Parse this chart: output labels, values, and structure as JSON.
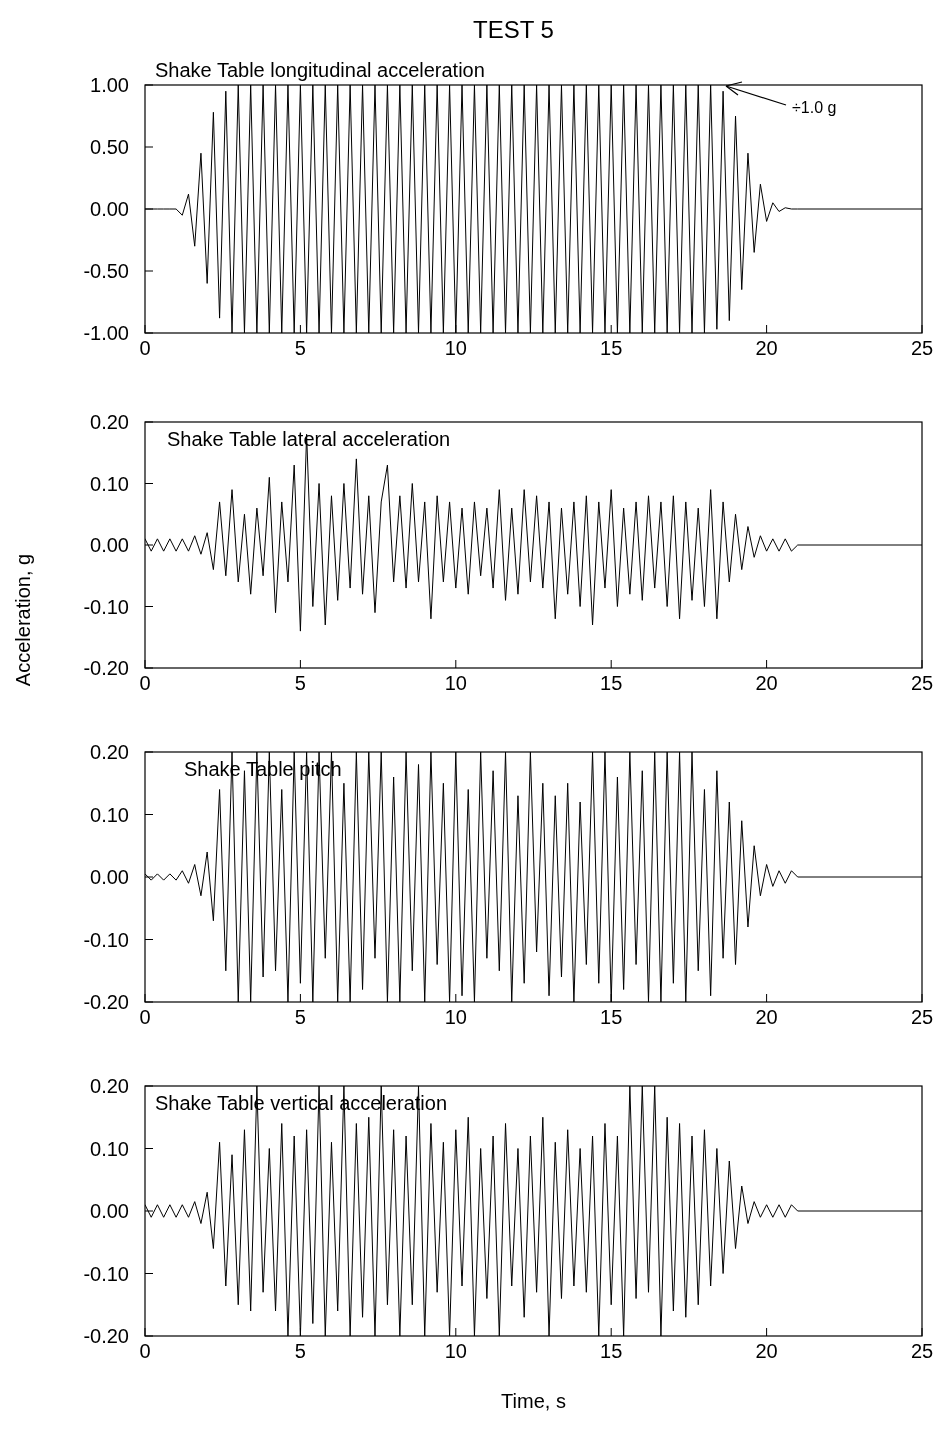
{
  "chart_data": [
    {
      "type": "line",
      "title": "TEST 5",
      "subtitle": "Shake Table longitudinal acceleration",
      "annotations": [
        "÷1.0 g"
      ],
      "xlim": [
        0,
        25
      ],
      "xticks": [
        0,
        5,
        10,
        15,
        20,
        25
      ],
      "ylim": [
        -1,
        1
      ],
      "yticks": [
        {
          "value": -1,
          "label": "-1.00"
        },
        {
          "value": -0.5,
          "label": "-0.50"
        },
        {
          "value": 0,
          "label": "0.00"
        },
        {
          "value": 0.5,
          "label": "0.50"
        },
        {
          "value": 1,
          "label": "1.00"
        }
      ],
      "grid": false,
      "x": [
        0,
        0.2,
        0.4,
        0.6,
        0.8,
        1,
        1.2,
        1.4,
        1.6,
        1.8,
        2,
        2.2,
        2.4,
        2.6,
        2.8,
        3,
        3.2,
        3.4,
        3.6,
        3.8,
        4,
        4.2,
        4.4,
        4.6,
        4.8,
        5,
        5.2,
        5.4,
        5.6,
        5.8,
        6,
        6.2,
        6.4,
        6.6,
        6.8,
        7,
        7.2,
        7.4,
        7.6,
        7.8,
        8,
        8.2,
        8.4,
        8.6,
        8.8,
        9,
        9.2,
        9.4,
        9.6,
        9.8,
        10,
        10.2,
        10.4,
        10.6,
        10.8,
        11,
        11.2,
        11.4,
        11.6,
        11.8,
        12,
        12.2,
        12.4,
        12.6,
        12.8,
        13,
        13.2,
        13.4,
        13.6,
        13.8,
        14,
        14.2,
        14.4,
        14.6,
        14.8,
        15,
        15.2,
        15.4,
        15.6,
        15.8,
        16,
        16.2,
        16.4,
        16.6,
        16.8,
        17,
        17.2,
        17.4,
        17.6,
        17.8,
        18,
        18.2,
        18.4,
        18.6,
        18.8,
        19,
        19.2,
        19.4,
        19.6,
        19.8,
        20,
        20.2,
        20.4,
        20.6,
        20.8,
        21,
        25
      ],
      "series": [
        {
          "color": "#000000",
          "values": [
            0,
            0,
            0,
            0,
            0,
            0,
            -0.05,
            0.12,
            -0.3,
            0.45,
            -0.6,
            0.78,
            -0.88,
            0.95,
            -1,
            1,
            -1,
            1,
            -1,
            1,
            -1,
            1,
            -1,
            1,
            -1,
            1,
            -1,
            1,
            -1,
            1,
            -1,
            1,
            -1,
            1,
            -1,
            1,
            -1,
            1,
            -1,
            1,
            -1,
            1,
            -1,
            1,
            -1,
            1,
            -1,
            1,
            -1,
            1,
            -1,
            1,
            -1,
            1,
            -1,
            1,
            -1,
            1,
            -1,
            1,
            -1,
            1,
            -1,
            1,
            -1,
            1,
            -1,
            1,
            -1,
            1,
            -1,
            1,
            -1,
            1,
            -1,
            1,
            -1,
            1,
            -1,
            1,
            -1,
            1,
            -1,
            1,
            -1,
            1,
            -1,
            1,
            -1,
            1,
            -1,
            1,
            -0.97,
            0.95,
            -0.9,
            0.75,
            -0.65,
            0.45,
            -0.35,
            0.2,
            -0.1,
            0.05,
            -0.02,
            0.01,
            0,
            0,
            0
          ]
        }
      ]
    },
    {
      "type": "line",
      "subtitle": "Shake Table lateral acceleration",
      "ylabel": "Acceleration, g",
      "xlim": [
        0,
        25
      ],
      "xticks": [
        0,
        5,
        10,
        15,
        20,
        25
      ],
      "ylim": [
        -0.2,
        0.2
      ],
      "yticks": [
        {
          "value": -0.2,
          "label": "-0.20"
        },
        {
          "value": -0.1,
          "label": "-0.10"
        },
        {
          "value": 0,
          "label": "0.00"
        },
        {
          "value": 0.1,
          "label": "0.10"
        },
        {
          "value": 0.2,
          "label": "0.20"
        }
      ],
      "grid": false,
      "x": [
        0,
        0.2,
        0.4,
        0.6,
        0.8,
        1,
        1.2,
        1.4,
        1.6,
        1.8,
        2,
        2.2,
        2.4,
        2.6,
        2.8,
        3,
        3.2,
        3.4,
        3.6,
        3.8,
        4,
        4.2,
        4.4,
        4.6,
        4.8,
        5,
        5.2,
        5.4,
        5.6,
        5.8,
        6,
        6.2,
        6.4,
        6.6,
        6.8,
        7,
        7.2,
        7.4,
        7.6,
        7.8,
        8,
        8.2,
        8.4,
        8.6,
        8.8,
        9,
        9.2,
        9.4,
        9.6,
        9.8,
        10,
        10.2,
        10.4,
        10.6,
        10.8,
        11,
        11.2,
        11.4,
        11.6,
        11.8,
        12,
        12.2,
        12.4,
        12.6,
        12.8,
        13,
        13.2,
        13.4,
        13.6,
        13.8,
        14,
        14.2,
        14.4,
        14.6,
        14.8,
        15,
        15.2,
        15.4,
        15.6,
        15.8,
        16,
        16.2,
        16.4,
        16.6,
        16.8,
        17,
        17.2,
        17.4,
        17.6,
        17.8,
        18,
        18.2,
        18.4,
        18.6,
        18.8,
        19,
        19.2,
        19.4,
        19.6,
        19.8,
        20,
        20.2,
        20.4,
        20.6,
        20.8,
        21,
        25
      ],
      "series": [
        {
          "color": "#000000",
          "values": [
            0.01,
            -0.01,
            0.01,
            -0.01,
            0.01,
            -0.01,
            0.01,
            -0.01,
            0.015,
            -0.015,
            0.02,
            -0.04,
            0.07,
            -0.05,
            0.09,
            -0.06,
            0.05,
            -0.08,
            0.06,
            -0.05,
            0.11,
            -0.11,
            0.07,
            -0.06,
            0.13,
            -0.14,
            0.18,
            -0.1,
            0.1,
            -0.13,
            0.08,
            -0.09,
            0.1,
            -0.07,
            0.14,
            -0.08,
            0.08,
            -0.11,
            0.07,
            0.13,
            -0.06,
            0.08,
            -0.07,
            0.1,
            -0.06,
            0.07,
            -0.12,
            0.08,
            -0.06,
            0.07,
            -0.07,
            0.06,
            -0.08,
            0.07,
            -0.05,
            0.06,
            -0.07,
            0.09,
            -0.09,
            0.06,
            -0.08,
            0.09,
            -0.06,
            0.08,
            -0.07,
            0.07,
            -0.12,
            0.06,
            -0.08,
            0.07,
            -0.1,
            0.08,
            -0.13,
            0.07,
            -0.07,
            0.09,
            -0.1,
            0.06,
            -0.08,
            0.07,
            -0.09,
            0.08,
            -0.07,
            0.07,
            -0.1,
            0.08,
            -0.12,
            0.07,
            -0.09,
            0.06,
            -0.1,
            0.09,
            -0.12,
            0.07,
            -0.06,
            0.05,
            -0.04,
            0.03,
            -0.02,
            0.015,
            -0.01,
            0.01,
            -0.01,
            0.01,
            -0.01,
            0,
            0
          ]
        }
      ]
    },
    {
      "type": "line",
      "subtitle": "Shake Table pitch",
      "xlim": [
        0,
        25
      ],
      "xticks": [
        0,
        5,
        10,
        15,
        20,
        25
      ],
      "ylim": [
        -0.2,
        0.2
      ],
      "yticks": [
        {
          "value": -0.2,
          "label": "-0.20"
        },
        {
          "value": -0.1,
          "label": "-0.10"
        },
        {
          "value": 0,
          "label": "0.00"
        },
        {
          "value": 0.1,
          "label": "0.10"
        },
        {
          "value": 0.2,
          "label": "0.20"
        }
      ],
      "grid": false,
      "x": [
        0,
        0.2,
        0.4,
        0.6,
        0.8,
        1,
        1.2,
        1.4,
        1.6,
        1.8,
        2,
        2.2,
        2.4,
        2.6,
        2.8,
        3,
        3.2,
        3.4,
        3.6,
        3.8,
        4,
        4.2,
        4.4,
        4.6,
        4.8,
        5,
        5.2,
        5.4,
        5.6,
        5.8,
        6,
        6.2,
        6.4,
        6.6,
        6.8,
        7,
        7.2,
        7.4,
        7.6,
        7.8,
        8,
        8.2,
        8.4,
        8.6,
        8.8,
        9,
        9.2,
        9.4,
        9.6,
        9.8,
        10,
        10.2,
        10.4,
        10.6,
        10.8,
        11,
        11.2,
        11.4,
        11.6,
        11.8,
        12,
        12.2,
        12.4,
        12.6,
        12.8,
        13,
        13.2,
        13.4,
        13.6,
        13.8,
        14,
        14.2,
        14.4,
        14.6,
        14.8,
        15,
        15.2,
        15.4,
        15.6,
        15.8,
        16,
        16.2,
        16.4,
        16.6,
        16.8,
        17,
        17.2,
        17.4,
        17.6,
        17.8,
        18,
        18.2,
        18.4,
        18.6,
        18.8,
        19,
        19.2,
        19.4,
        19.6,
        19.8,
        20,
        20.2,
        20.4,
        20.6,
        20.8,
        21,
        25
      ],
      "series": [
        {
          "color": "#000000",
          "values": [
            0.005,
            -0.005,
            0.005,
            -0.005,
            0.005,
            -0.005,
            0.01,
            -0.01,
            0.02,
            -0.03,
            0.04,
            -0.07,
            0.14,
            -0.15,
            0.2,
            -0.2,
            0.17,
            -0.2,
            0.2,
            -0.16,
            0.2,
            -0.15,
            0.14,
            -0.2,
            0.2,
            -0.17,
            0.2,
            -0.2,
            0.2,
            -0.13,
            0.2,
            -0.2,
            0.15,
            -0.2,
            0.2,
            -0.18,
            0.2,
            -0.13,
            0.2,
            -0.2,
            0.16,
            -0.2,
            0.2,
            -0.15,
            0.18,
            -0.2,
            0.2,
            -0.14,
            0.15,
            -0.2,
            0.2,
            -0.19,
            0.14,
            -0.2,
            0.2,
            -0.13,
            0.17,
            -0.15,
            0.2,
            -0.2,
            0.13,
            -0.17,
            0.2,
            -0.12,
            0.15,
            -0.19,
            0.13,
            -0.16,
            0.15,
            -0.2,
            0.12,
            -0.14,
            0.2,
            -0.17,
            0.2,
            -0.2,
            0.16,
            -0.18,
            0.2,
            -0.14,
            0.17,
            -0.2,
            0.2,
            -0.2,
            0.2,
            -0.17,
            0.2,
            -0.2,
            0.2,
            -0.15,
            0.14,
            -0.19,
            0.17,
            -0.13,
            0.12,
            -0.14,
            0.09,
            -0.08,
            0.05,
            -0.03,
            0.02,
            -0.015,
            0.01,
            -0.01,
            0.01,
            0,
            0
          ]
        }
      ]
    },
    {
      "type": "line",
      "subtitle": "Shake Table vertical acceleration",
      "xlabel": "Time, s",
      "xlim": [
        0,
        25
      ],
      "xticks": [
        0,
        5,
        10,
        15,
        20,
        25
      ],
      "ylim": [
        -0.2,
        0.2
      ],
      "yticks": [
        {
          "value": -0.2,
          "label": "-0.20"
        },
        {
          "value": -0.1,
          "label": "-0.10"
        },
        {
          "value": 0,
          "label": "0.00"
        },
        {
          "value": 0.1,
          "label": "0.10"
        },
        {
          "value": 0.2,
          "label": "0.20"
        }
      ],
      "grid": false,
      "x": [
        0,
        0.2,
        0.4,
        0.6,
        0.8,
        1,
        1.2,
        1.4,
        1.6,
        1.8,
        2,
        2.2,
        2.4,
        2.6,
        2.8,
        3,
        3.2,
        3.4,
        3.6,
        3.8,
        4,
        4.2,
        4.4,
        4.6,
        4.8,
        5,
        5.2,
        5.4,
        5.6,
        5.8,
        6,
        6.2,
        6.4,
        6.6,
        6.8,
        7,
        7.2,
        7.4,
        7.6,
        7.8,
        8,
        8.2,
        8.4,
        8.6,
        8.8,
        9,
        9.2,
        9.4,
        9.6,
        9.8,
        10,
        10.2,
        10.4,
        10.6,
        10.8,
        11,
        11.2,
        11.4,
        11.6,
        11.8,
        12,
        12.2,
        12.4,
        12.6,
        12.8,
        13,
        13.2,
        13.4,
        13.6,
        13.8,
        14,
        14.2,
        14.4,
        14.6,
        14.8,
        15,
        15.2,
        15.4,
        15.6,
        15.8,
        16,
        16.2,
        16.4,
        16.6,
        16.8,
        17,
        17.2,
        17.4,
        17.6,
        17.8,
        18,
        18.2,
        18.4,
        18.6,
        18.8,
        19,
        19.2,
        19.4,
        19.6,
        19.8,
        20,
        20.2,
        20.4,
        20.6,
        20.8,
        21,
        25
      ],
      "series": [
        {
          "color": "#000000",
          "values": [
            0.01,
            -0.01,
            0.01,
            -0.01,
            0.01,
            -0.01,
            0.01,
            -0.01,
            0.015,
            -0.02,
            0.03,
            -0.06,
            0.11,
            -0.12,
            0.09,
            -0.15,
            0.13,
            -0.16,
            0.2,
            -0.13,
            0.1,
            -0.16,
            0.14,
            -0.2,
            0.12,
            -0.2,
            0.13,
            -0.18,
            0.2,
            -0.2,
            0.11,
            -0.16,
            0.2,
            -0.2,
            0.14,
            -0.17,
            0.15,
            -0.2,
            0.2,
            -0.15,
            0.13,
            -0.2,
            0.12,
            -0.15,
            0.2,
            -0.2,
            0.14,
            -0.13,
            0.11,
            -0.2,
            0.13,
            -0.12,
            0.15,
            -0.2,
            0.1,
            -0.14,
            0.12,
            -0.2,
            0.14,
            -0.12,
            0.1,
            -0.17,
            0.12,
            -0.13,
            0.15,
            -0.2,
            0.11,
            -0.14,
            0.13,
            -0.12,
            0.1,
            -0.13,
            0.12,
            -0.2,
            0.14,
            -0.15,
            0.12,
            -0.2,
            0.2,
            -0.14,
            0.2,
            -0.13,
            0.2,
            -0.2,
            0.15,
            -0.16,
            0.14,
            -0.17,
            0.12,
            -0.15,
            0.13,
            -0.12,
            0.1,
            -0.1,
            0.08,
            -0.06,
            0.04,
            -0.02,
            0.015,
            -0.01,
            0.01,
            -0.01,
            0.01,
            -0.01,
            0.01,
            0,
            0
          ]
        }
      ]
    }
  ]
}
